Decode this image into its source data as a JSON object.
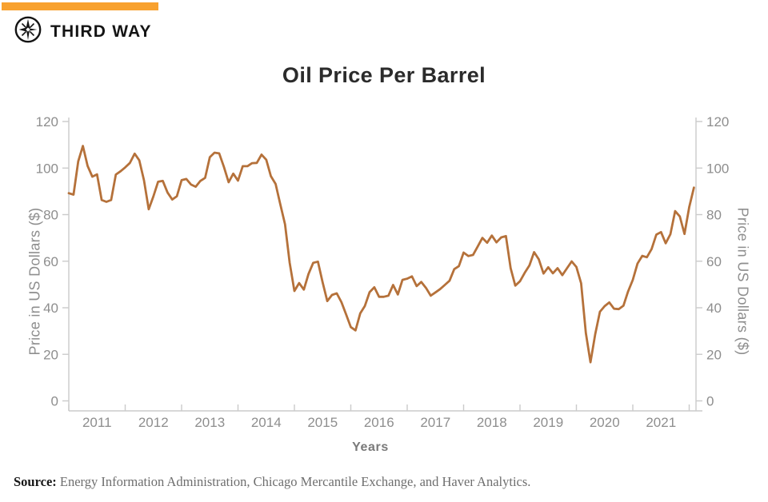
{
  "brand": {
    "bar_color": "#F8A12E",
    "logo_text": "THIRD WAY"
  },
  "title": "Oil Price Per Barrel",
  "chart_data": {
    "type": "line",
    "title": "Oil Price Per Barrel",
    "xlabel": "Years",
    "ylabel_left": "Price in US Dollars ($)",
    "ylabel_right": "Price in US Dollars ($)",
    "ylim": [
      0,
      120
    ],
    "yticks": [
      0,
      20,
      40,
      60,
      80,
      100,
      120
    ],
    "xtick_labels": [
      "2011",
      "2012",
      "2013",
      "2014",
      "2015",
      "2016",
      "2017",
      "2018",
      "2019",
      "2020",
      "2021"
    ],
    "frequency": "monthly",
    "x_start": "2011-01",
    "x_end": "2022-02",
    "grid": false,
    "legend": "none",
    "line_color": "#B5713A",
    "axis_color": "#CBCBCB",
    "tick_label_color": "#8E8E8E",
    "series": [
      {
        "name": "Oil price per barrel (USD)",
        "values": [
          89.2,
          88.6,
          102.9,
          109.5,
          100.9,
          96.3,
          97.3,
          86.3,
          85.5,
          86.3,
          97.2,
          98.6,
          100.3,
          102.2,
          106.2,
          103.3,
          94.7,
          82.3,
          87.9,
          94.1,
          94.5,
          89.5,
          86.5,
          87.9,
          94.8,
          95.3,
          92.9,
          92.0,
          94.5,
          95.8,
          104.7,
          106.6,
          106.3,
          100.5,
          93.9,
          97.6,
          94.6,
          100.8,
          100.8,
          102.1,
          102.2,
          105.8,
          103.6,
          96.5,
          93.2,
          84.4,
          75.8,
          59.3,
          47.2,
          50.6,
          47.8,
          54.5,
          59.3,
          59.8,
          50.9,
          42.9,
          45.5,
          46.2,
          42.4,
          37.2,
          31.7,
          30.3,
          37.6,
          40.8,
          46.7,
          48.8,
          44.7,
          44.7,
          45.2,
          49.8,
          45.7,
          52.0,
          52.5,
          53.5,
          49.3,
          51.1,
          48.5,
          45.2,
          46.6,
          48.0,
          49.8,
          51.6,
          56.6,
          57.9,
          63.7,
          62.2,
          62.7,
          66.3,
          70.0,
          67.9,
          71.0,
          68.1,
          70.2,
          70.8,
          57.0,
          49.5,
          51.4,
          55.0,
          58.2,
          63.9,
          60.8,
          54.7,
          57.4,
          54.8,
          57.0,
          54.0,
          57.0,
          59.9,
          57.5,
          50.5,
          29.2,
          16.6,
          28.6,
          38.3,
          40.7,
          42.3,
          39.6,
          39.4,
          40.9,
          47.0,
          52.0,
          59.0,
          62.3,
          61.7,
          65.2,
          71.4,
          72.5,
          67.7,
          71.6,
          81.5,
          79.2,
          71.7,
          83.2,
          91.6
        ]
      }
    ]
  },
  "source": {
    "label": "Source:",
    "text": " Energy Information Administration, Chicago Mercantile Exchange, and Haver Analytics."
  }
}
